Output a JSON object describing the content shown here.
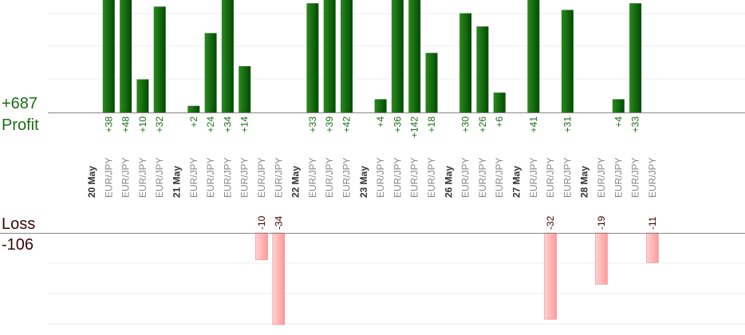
{
  "summary": {
    "profit_total": "+687",
    "profit_label": "Profit",
    "loss_label": "Loss",
    "loss_total": "-106"
  },
  "colors": {
    "profit_bar_light": "#2b8a1f",
    "profit_bar_dark": "#024a02",
    "profit_text": "#1a6e14",
    "loss_bar_light": "#ffd2d2",
    "loss_bar_dark": "#ff9a9a",
    "loss_text": "#3a0505",
    "date_text": "#333333",
    "pair_text": "#888888",
    "gridline": "#eeeeee",
    "axis": "#888888"
  },
  "chart_data": {
    "type": "bar",
    "profit_axis": {
      "min": 0,
      "max": 34,
      "clipped": true
    },
    "loss_axis": {
      "min": -34,
      "max": 0
    },
    "groups": [
      {
        "date": "20 May",
        "trades": [
          {
            "pair": "EUR/JPY",
            "value": 38
          },
          {
            "pair": "EUR/JPY",
            "value": 48
          },
          {
            "pair": "EUR/JPY",
            "value": 10
          },
          {
            "pair": "EUR/JPY",
            "value": 32
          }
        ]
      },
      {
        "date": "21 May",
        "trades": [
          {
            "pair": "EUR/JPY",
            "value": 2
          },
          {
            "pair": "EUR/JPY",
            "value": 24
          },
          {
            "pair": "EUR/JPY",
            "value": 34
          },
          {
            "pair": "EUR/JPY",
            "value": 14
          },
          {
            "pair": "EUR/JPY",
            "value": -10
          },
          {
            "pair": "EUR/JPY",
            "value": -34
          }
        ]
      },
      {
        "date": "22 May",
        "trades": [
          {
            "pair": "EUR/JPY",
            "value": 33
          },
          {
            "pair": "EUR/JPY",
            "value": 39
          },
          {
            "pair": "EUR/JPY",
            "value": 42
          }
        ]
      },
      {
        "date": "23 May",
        "trades": [
          {
            "pair": "EUR/JPY",
            "value": 4
          },
          {
            "pair": "EUR/JPY",
            "value": 36
          },
          {
            "pair": "EUR/JPY",
            "value": 142
          },
          {
            "pair": "EUR/JPY",
            "value": 18
          }
        ]
      },
      {
        "date": "26 May",
        "trades": [
          {
            "pair": "EUR/JPY",
            "value": 30
          },
          {
            "pair": "EUR/JPY",
            "value": 26
          },
          {
            "pair": "EUR/JPY",
            "value": 6
          }
        ]
      },
      {
        "date": "27 May",
        "trades": [
          {
            "pair": "EUR/JPY",
            "value": 41
          },
          {
            "pair": "EUR/JPY",
            "value": -32
          },
          {
            "pair": "EUR/JPY",
            "value": 31
          }
        ]
      },
      {
        "date": "28 May",
        "trades": [
          {
            "pair": "EUR/JPY",
            "value": -19
          },
          {
            "pair": "EUR/JPY",
            "value": 4
          },
          {
            "pair": "EUR/JPY",
            "value": 33
          },
          {
            "pair": "EUR/JPY",
            "value": -11
          }
        ]
      }
    ]
  }
}
